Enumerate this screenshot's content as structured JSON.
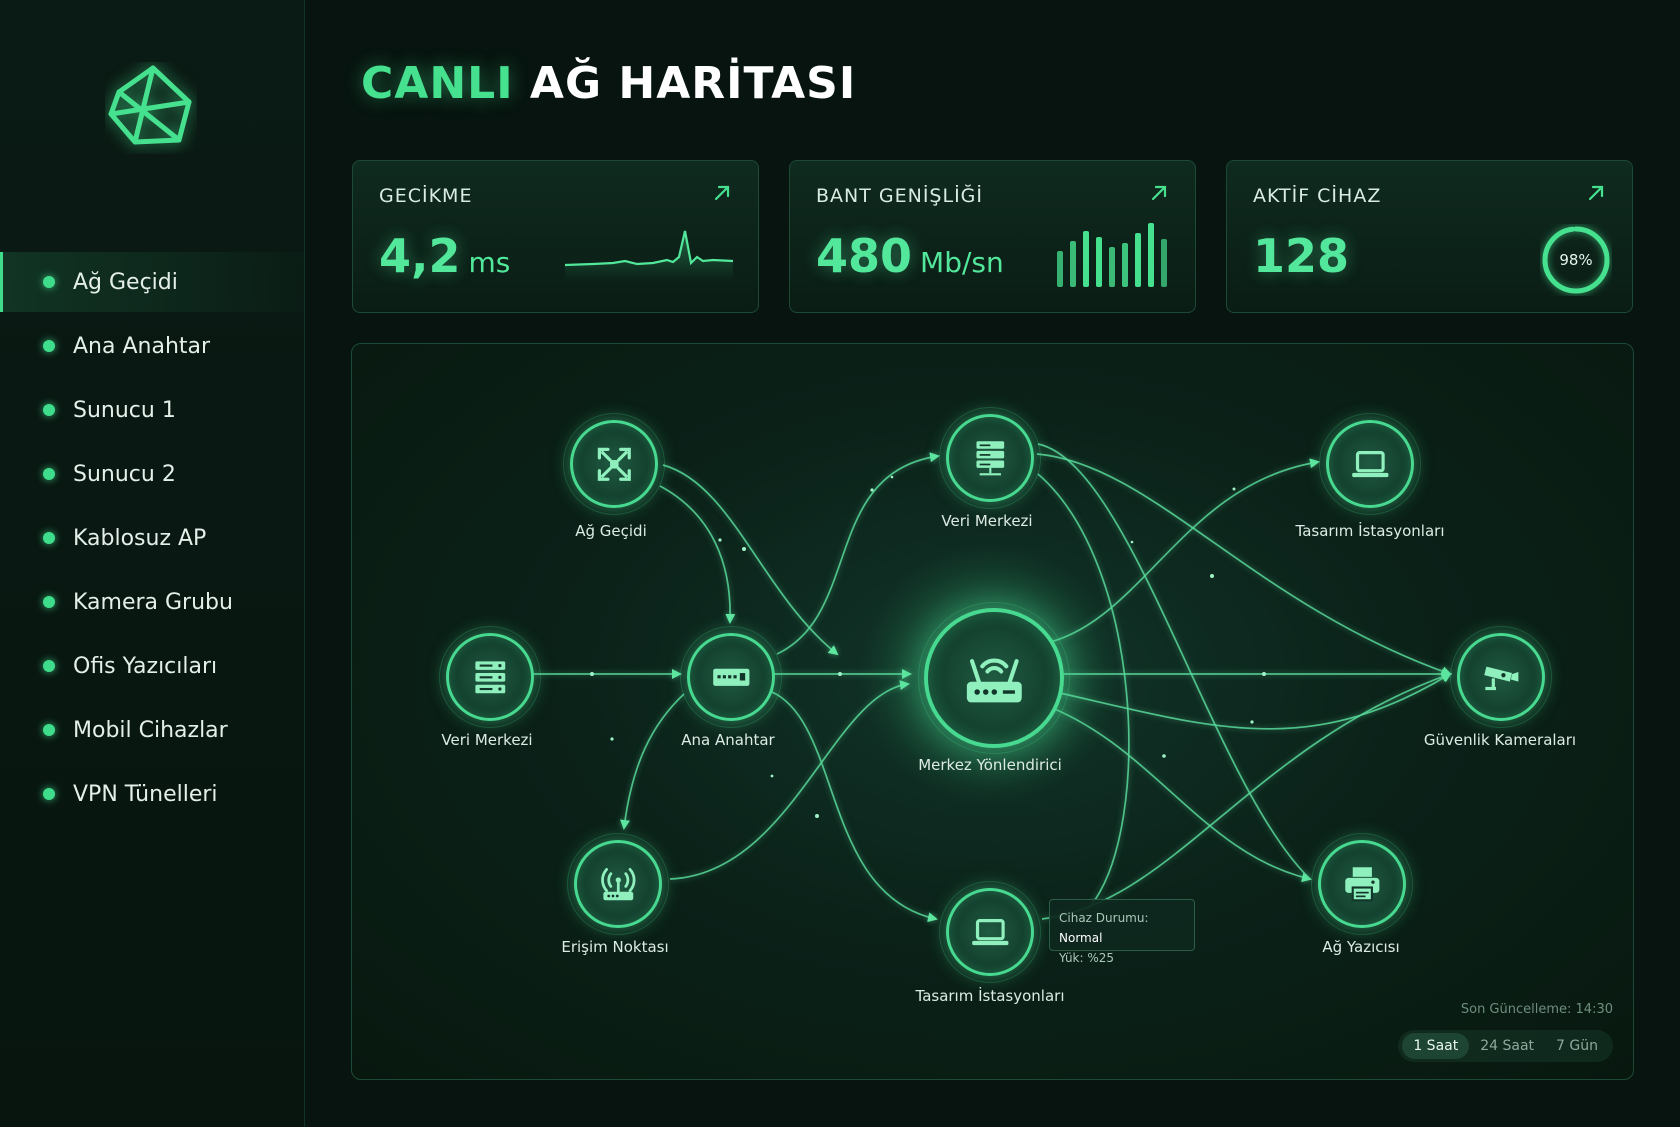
{
  "sidebar": {
    "logo_icon": "network-triangle-logo",
    "items": [
      {
        "label": "Ağ Geçidi",
        "active": true
      },
      {
        "label": "Ana Anahtar"
      },
      {
        "label": "Sunucu 1"
      },
      {
        "label": "Sunucu 2"
      },
      {
        "label": "Kablosuz AP"
      },
      {
        "label": "Kamera Grubu"
      },
      {
        "label": "Ofis Yazıcıları"
      },
      {
        "label": "Mobil Cihazlar"
      },
      {
        "label": "VPN Tünelleri"
      }
    ]
  },
  "header": {
    "title_accent": "CANLI",
    "title_rest": "AĞ HARİTASI"
  },
  "stats": [
    {
      "label": "GECİKME",
      "value": "4,2",
      "unit": "ms",
      "trend_icon": "trend-up-arrow-icon"
    },
    {
      "label": "BANT GENİŞLİĞİ",
      "value": "480",
      "unit": "Mb/sn",
      "trend_icon": "trend-up-arrow-icon"
    },
    {
      "label": "AKTİF CİHAZ",
      "value": "128",
      "ring_value": "98%",
      "ring_fraction": 0.98,
      "trend_icon": "trend-up-arrow-icon"
    }
  ],
  "map": {
    "nodes": [
      {
        "label": "Ağ Geçidi",
        "icon": "expand-arrows-icon"
      },
      {
        "label": "Veri Merkezi",
        "icon": "server-stack-icon"
      },
      {
        "label": "Ana Anahtar",
        "icon": "switch-icon"
      },
      {
        "label": "Erişim Noktası",
        "icon": "access-point-icon"
      },
      {
        "label": "Veri Merkezi",
        "icon": "server-rack-icon"
      },
      {
        "label": "Merkez Yönlendirici",
        "icon": "router-icon"
      },
      {
        "label": "Tasarım İstasyonları",
        "icon": "laptop-icon"
      },
      {
        "label": "Tasarım İstasyonları",
        "icon": "laptop-icon"
      },
      {
        "label": "Güvenlik Kameraları",
        "icon": "security-camera-icon"
      },
      {
        "label": "Ağ Yazıcısı",
        "icon": "printer-icon"
      }
    ],
    "tooltip": {
      "status_label": "Cihaz Durumu:",
      "status_value": "Normal",
      "load": "Yük: %25"
    },
    "last_update": "Son Güncelleme: 14:30",
    "ranges": [
      "1 Saat",
      "24 Saat",
      "7 Gün"
    ],
    "active_range": "1 Saat"
  },
  "colors": {
    "accent": "#46e18f",
    "background": "#07140f",
    "panel": "#0f2a1f"
  }
}
